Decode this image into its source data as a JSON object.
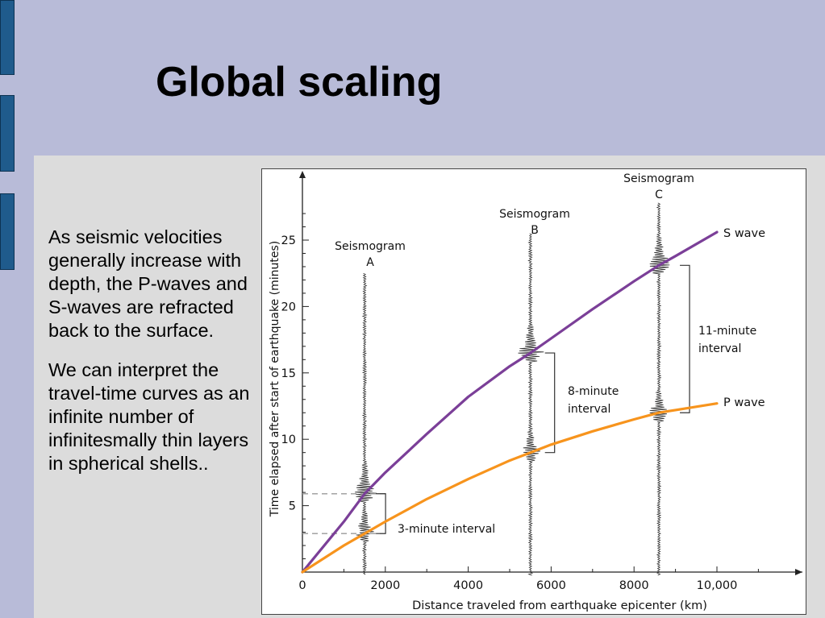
{
  "slide": {
    "title": "Global scaling",
    "paragraphs": [
      "As seismic velocities generally increase with depth, the P-waves and S-waves are refracted back to the surface.",
      "We can interpret the travel-time curves as an infinite number of infinitesmally thin layers in spherical shells.."
    ]
  },
  "colors": {
    "background": "#b8bbd8",
    "panel": "#dcdcdc",
    "side_tab": "#1f5b8c",
    "s_wave": "#7b3f98",
    "p_wave": "#f7941d"
  },
  "chart_data": {
    "type": "line",
    "xlabel": "Distance traveled from earthquake epicenter (km)",
    "ylabel": "Time elapsed after start of earthquake (minutes)",
    "xlim": [
      0,
      10000
    ],
    "ylim": [
      0,
      25
    ],
    "x_ticks": [
      "0",
      "2000",
      "4000",
      "6000",
      "8000",
      "10,000"
    ],
    "y_ticks": [
      "5",
      "10",
      "15",
      "20",
      "25"
    ],
    "grid": false,
    "series": [
      {
        "name": "S wave",
        "x": [
          0,
          1000,
          1500,
          2000,
          3000,
          4000,
          5000,
          5500,
          6000,
          7000,
          8000,
          8600,
          9000,
          10000
        ],
        "y": [
          0,
          3.8,
          5.9,
          7.5,
          10.4,
          13.2,
          15.5,
          16.5,
          17.6,
          19.8,
          21.9,
          23.1,
          23.8,
          25.6
        ]
      },
      {
        "name": "P wave",
        "x": [
          0,
          1000,
          1500,
          2000,
          3000,
          4000,
          5000,
          5500,
          6000,
          7000,
          8000,
          8600,
          9000,
          10000
        ],
        "y": [
          0,
          2.0,
          2.9,
          3.8,
          5.5,
          7.0,
          8.4,
          9.0,
          9.6,
          10.6,
          11.5,
          12.0,
          12.2,
          12.7
        ]
      }
    ],
    "seismograms": [
      {
        "label": "Seismogram",
        "letter": "A",
        "x": 1500,
        "p_arrival": 2.9,
        "s_arrival": 5.9
      },
      {
        "label": "Seismogram",
        "letter": "B",
        "x": 5500,
        "p_arrival": 9.0,
        "s_arrival": 16.5
      },
      {
        "label": "Seismogram",
        "letter": "C",
        "x": 8600,
        "p_arrival": 12.0,
        "s_arrival": 23.1
      }
    ],
    "annotations": [
      {
        "text": "3-minute interval",
        "x": 1500,
        "from": 2.9,
        "to": 5.9
      },
      {
        "text": "8-minute interval",
        "x": 5500,
        "from": 9.0,
        "to": 16.5
      },
      {
        "text": "11-minute interval",
        "x": 8600,
        "from": 12.0,
        "to": 23.1
      }
    ],
    "annotation_lines": {
      "b": [
        "8-minute",
        "interval"
      ],
      "c": [
        "11-minute",
        "interval"
      ]
    }
  }
}
